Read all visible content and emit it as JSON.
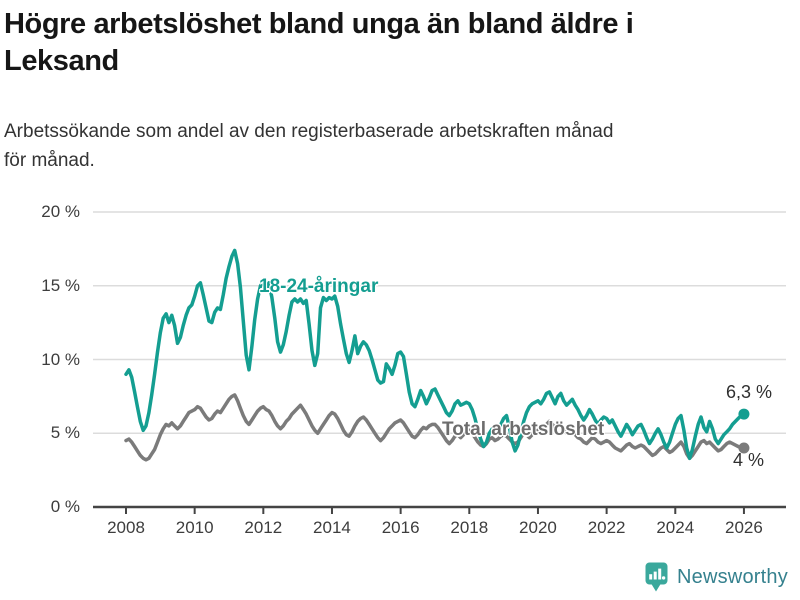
{
  "title_lines": [
    "Högre arbetslöshet bland unga än bland äldre i",
    "Leksand"
  ],
  "subtitle_lines": [
    "Arbetssökande som andel av den registerbaserade arbetskraften månad",
    "för månad."
  ],
  "colors": {
    "youth_line": "#149e91",
    "total_line": "#7b7b7b",
    "total_label": "#6d6d6d",
    "grid": "#dcdcdc",
    "axis": "#444444",
    "end_label_text": "#2f2f2f",
    "logo_icon": "#3aa89c",
    "logo_text": "#35818e"
  },
  "logo": {
    "text": "Newsworthy"
  },
  "chart_data": {
    "type": "line",
    "title": "Högre arbetslöshet bland unga än bland äldre i Leksand",
    "subtitle": "Arbetssökande som andel av den registerbaserade arbetskraften månad för månad.",
    "xlabel": "",
    "ylabel": "%",
    "ylim": [
      0,
      20
    ],
    "grid": "horizontal",
    "legend_position": "inline-labels",
    "y_ticks": [
      {
        "value": 20,
        "label": "20 %"
      },
      {
        "value": 15,
        "label": "15 %"
      },
      {
        "value": 10,
        "label": "10 %"
      },
      {
        "value": 5,
        "label": "5 %"
      },
      {
        "value": 0,
        "label": "0 %"
      }
    ],
    "x_ticks": [
      {
        "value": 2008,
        "label": "2008"
      },
      {
        "value": 2010,
        "label": "2010"
      },
      {
        "value": 2012,
        "label": "2012"
      },
      {
        "value": 2014,
        "label": "2014"
      },
      {
        "value": 2016,
        "label": "2016"
      },
      {
        "value": 2018,
        "label": "2018"
      },
      {
        "value": 2020,
        "label": "2020"
      },
      {
        "value": 2022,
        "label": "2022"
      },
      {
        "value": 2024,
        "label": "2024"
      },
      {
        "value": 2026,
        "label": "2026"
      }
    ],
    "x_start_year": 2008,
    "x_step": "monthly",
    "series": [
      {
        "name": "18-24-åringar",
        "end_label": "6,3 %",
        "last_value": 6.3,
        "values": [
          9.0,
          9.3,
          8.8,
          7.8,
          6.8,
          5.8,
          5.2,
          5.5,
          6.4,
          7.6,
          9.0,
          10.5,
          11.8,
          12.8,
          13.1,
          12.5,
          13.0,
          12.3,
          11.1,
          11.5,
          12.3,
          13.0,
          13.5,
          13.7,
          14.3,
          15.0,
          15.2,
          14.4,
          13.5,
          12.6,
          12.5,
          13.2,
          13.5,
          13.4,
          14.4,
          15.5,
          16.3,
          17.0,
          17.4,
          16.5,
          14.9,
          12.6,
          10.3,
          9.3,
          10.9,
          12.7,
          14.1,
          15.0,
          15.3,
          14.8,
          15.2,
          14.2,
          12.8,
          11.2,
          10.5,
          11.0,
          11.9,
          13.0,
          13.9,
          14.1,
          13.9,
          14.1,
          13.8,
          14.0,
          12.4,
          10.6,
          9.6,
          10.4,
          13.5,
          14.2,
          14.0,
          14.2,
          14.1,
          14.3,
          13.6,
          12.4,
          11.4,
          10.4,
          9.8,
          10.6,
          11.6,
          10.4,
          10.9,
          11.2,
          11.0,
          10.6,
          10.0,
          9.3,
          8.6,
          8.4,
          8.5,
          9.7,
          9.4,
          9.0,
          9.6,
          10.4,
          10.5,
          10.2,
          9.0,
          7.8,
          7.0,
          6.8,
          7.3,
          7.9,
          7.5,
          7.0,
          7.4,
          7.9,
          8.0,
          7.6,
          7.2,
          6.8,
          6.4,
          6.2,
          6.5,
          7.0,
          7.2,
          6.9,
          7.0,
          7.1,
          7.0,
          6.6,
          6.0,
          5.2,
          4.6,
          4.1,
          4.4,
          5.0,
          5.3,
          4.9,
          5.2,
          5.6,
          6.0,
          6.2,
          5.4,
          4.4,
          3.8,
          4.2,
          5.0,
          5.8,
          6.4,
          6.8,
          7.0,
          7.1,
          7.2,
          7.0,
          7.3,
          7.7,
          7.8,
          7.4,
          7.0,
          7.5,
          7.7,
          7.2,
          6.9,
          7.1,
          7.3,
          6.9,
          6.6,
          6.2,
          5.9,
          6.2,
          6.6,
          6.3,
          5.9,
          5.6,
          5.9,
          6.1,
          6.0,
          5.7,
          5.9,
          5.5,
          5.1,
          4.8,
          5.2,
          5.6,
          5.3,
          4.9,
          5.2,
          5.5,
          5.6,
          5.2,
          4.7,
          4.3,
          4.6,
          5.0,
          5.3,
          4.9,
          4.4,
          4.0,
          4.4,
          5.0,
          5.6,
          6.0,
          6.2,
          5.2,
          4.0,
          3.3,
          3.9,
          4.8,
          5.6,
          6.1,
          5.4,
          5.1,
          5.8,
          5.3,
          4.6,
          4.3,
          4.6,
          4.9,
          5.1,
          5.3,
          5.6,
          5.8,
          6.0,
          6.2,
          6.3
        ]
      },
      {
        "name": "Total arbetslöshet",
        "end_label": "4 %",
        "last_value": 4.0,
        "values": [
          4.5,
          4.6,
          4.4,
          4.1,
          3.8,
          3.5,
          3.3,
          3.2,
          3.3,
          3.6,
          3.9,
          4.4,
          4.9,
          5.3,
          5.6,
          5.5,
          5.7,
          5.5,
          5.3,
          5.5,
          5.8,
          6.1,
          6.4,
          6.5,
          6.6,
          6.8,
          6.7,
          6.4,
          6.1,
          5.9,
          6.0,
          6.3,
          6.5,
          6.4,
          6.7,
          7.0,
          7.3,
          7.5,
          7.6,
          7.2,
          6.7,
          6.2,
          5.8,
          5.6,
          5.9,
          6.2,
          6.5,
          6.7,
          6.8,
          6.6,
          6.5,
          6.2,
          5.8,
          5.5,
          5.3,
          5.5,
          5.8,
          6.0,
          6.3,
          6.5,
          6.7,
          6.9,
          6.6,
          6.3,
          5.9,
          5.5,
          5.2,
          5.0,
          5.3,
          5.6,
          5.9,
          6.2,
          6.4,
          6.3,
          6.0,
          5.6,
          5.2,
          4.9,
          4.8,
          5.1,
          5.5,
          5.8,
          6.0,
          6.1,
          5.9,
          5.6,
          5.3,
          5.0,
          4.7,
          4.5,
          4.7,
          5.0,
          5.3,
          5.5,
          5.7,
          5.8,
          5.9,
          5.7,
          5.4,
          5.1,
          4.8,
          4.7,
          4.9,
          5.2,
          5.4,
          5.3,
          5.5,
          5.6,
          5.6,
          5.4,
          5.1,
          4.8,
          4.5,
          4.3,
          4.5,
          4.8,
          4.9,
          4.7,
          4.9,
          5.1,
          5.2,
          5.0,
          4.7,
          4.4,
          4.2,
          4.1,
          4.3,
          4.6,
          4.7,
          4.5,
          4.6,
          4.8,
          4.9,
          4.8,
          4.6,
          4.4,
          4.3,
          4.4,
          4.7,
          5.0,
          4.9,
          4.7,
          4.9,
          5.1,
          5.2,
          5.1,
          5.3,
          5.6,
          5.8,
          5.6,
          5.4,
          5.6,
          5.5,
          5.2,
          5.0,
          5.1,
          5.1,
          4.9,
          4.7,
          4.6,
          4.4,
          4.3,
          4.5,
          4.7,
          4.6,
          4.4,
          4.3,
          4.4,
          4.5,
          4.4,
          4.2,
          4.0,
          3.9,
          3.8,
          4.0,
          4.2,
          4.3,
          4.1,
          4.0,
          4.1,
          4.2,
          4.1,
          3.9,
          3.7,
          3.5,
          3.6,
          3.8,
          4.0,
          4.1,
          3.9,
          3.7,
          3.8,
          4.0,
          4.2,
          4.4,
          4.1,
          3.6,
          3.3,
          3.5,
          3.8,
          4.1,
          4.4,
          4.5,
          4.3,
          4.4,
          4.2,
          4.0,
          3.8,
          3.9,
          4.1,
          4.3,
          4.4,
          4.3,
          4.2,
          4.1,
          4.0,
          4.0
        ]
      }
    ]
  }
}
